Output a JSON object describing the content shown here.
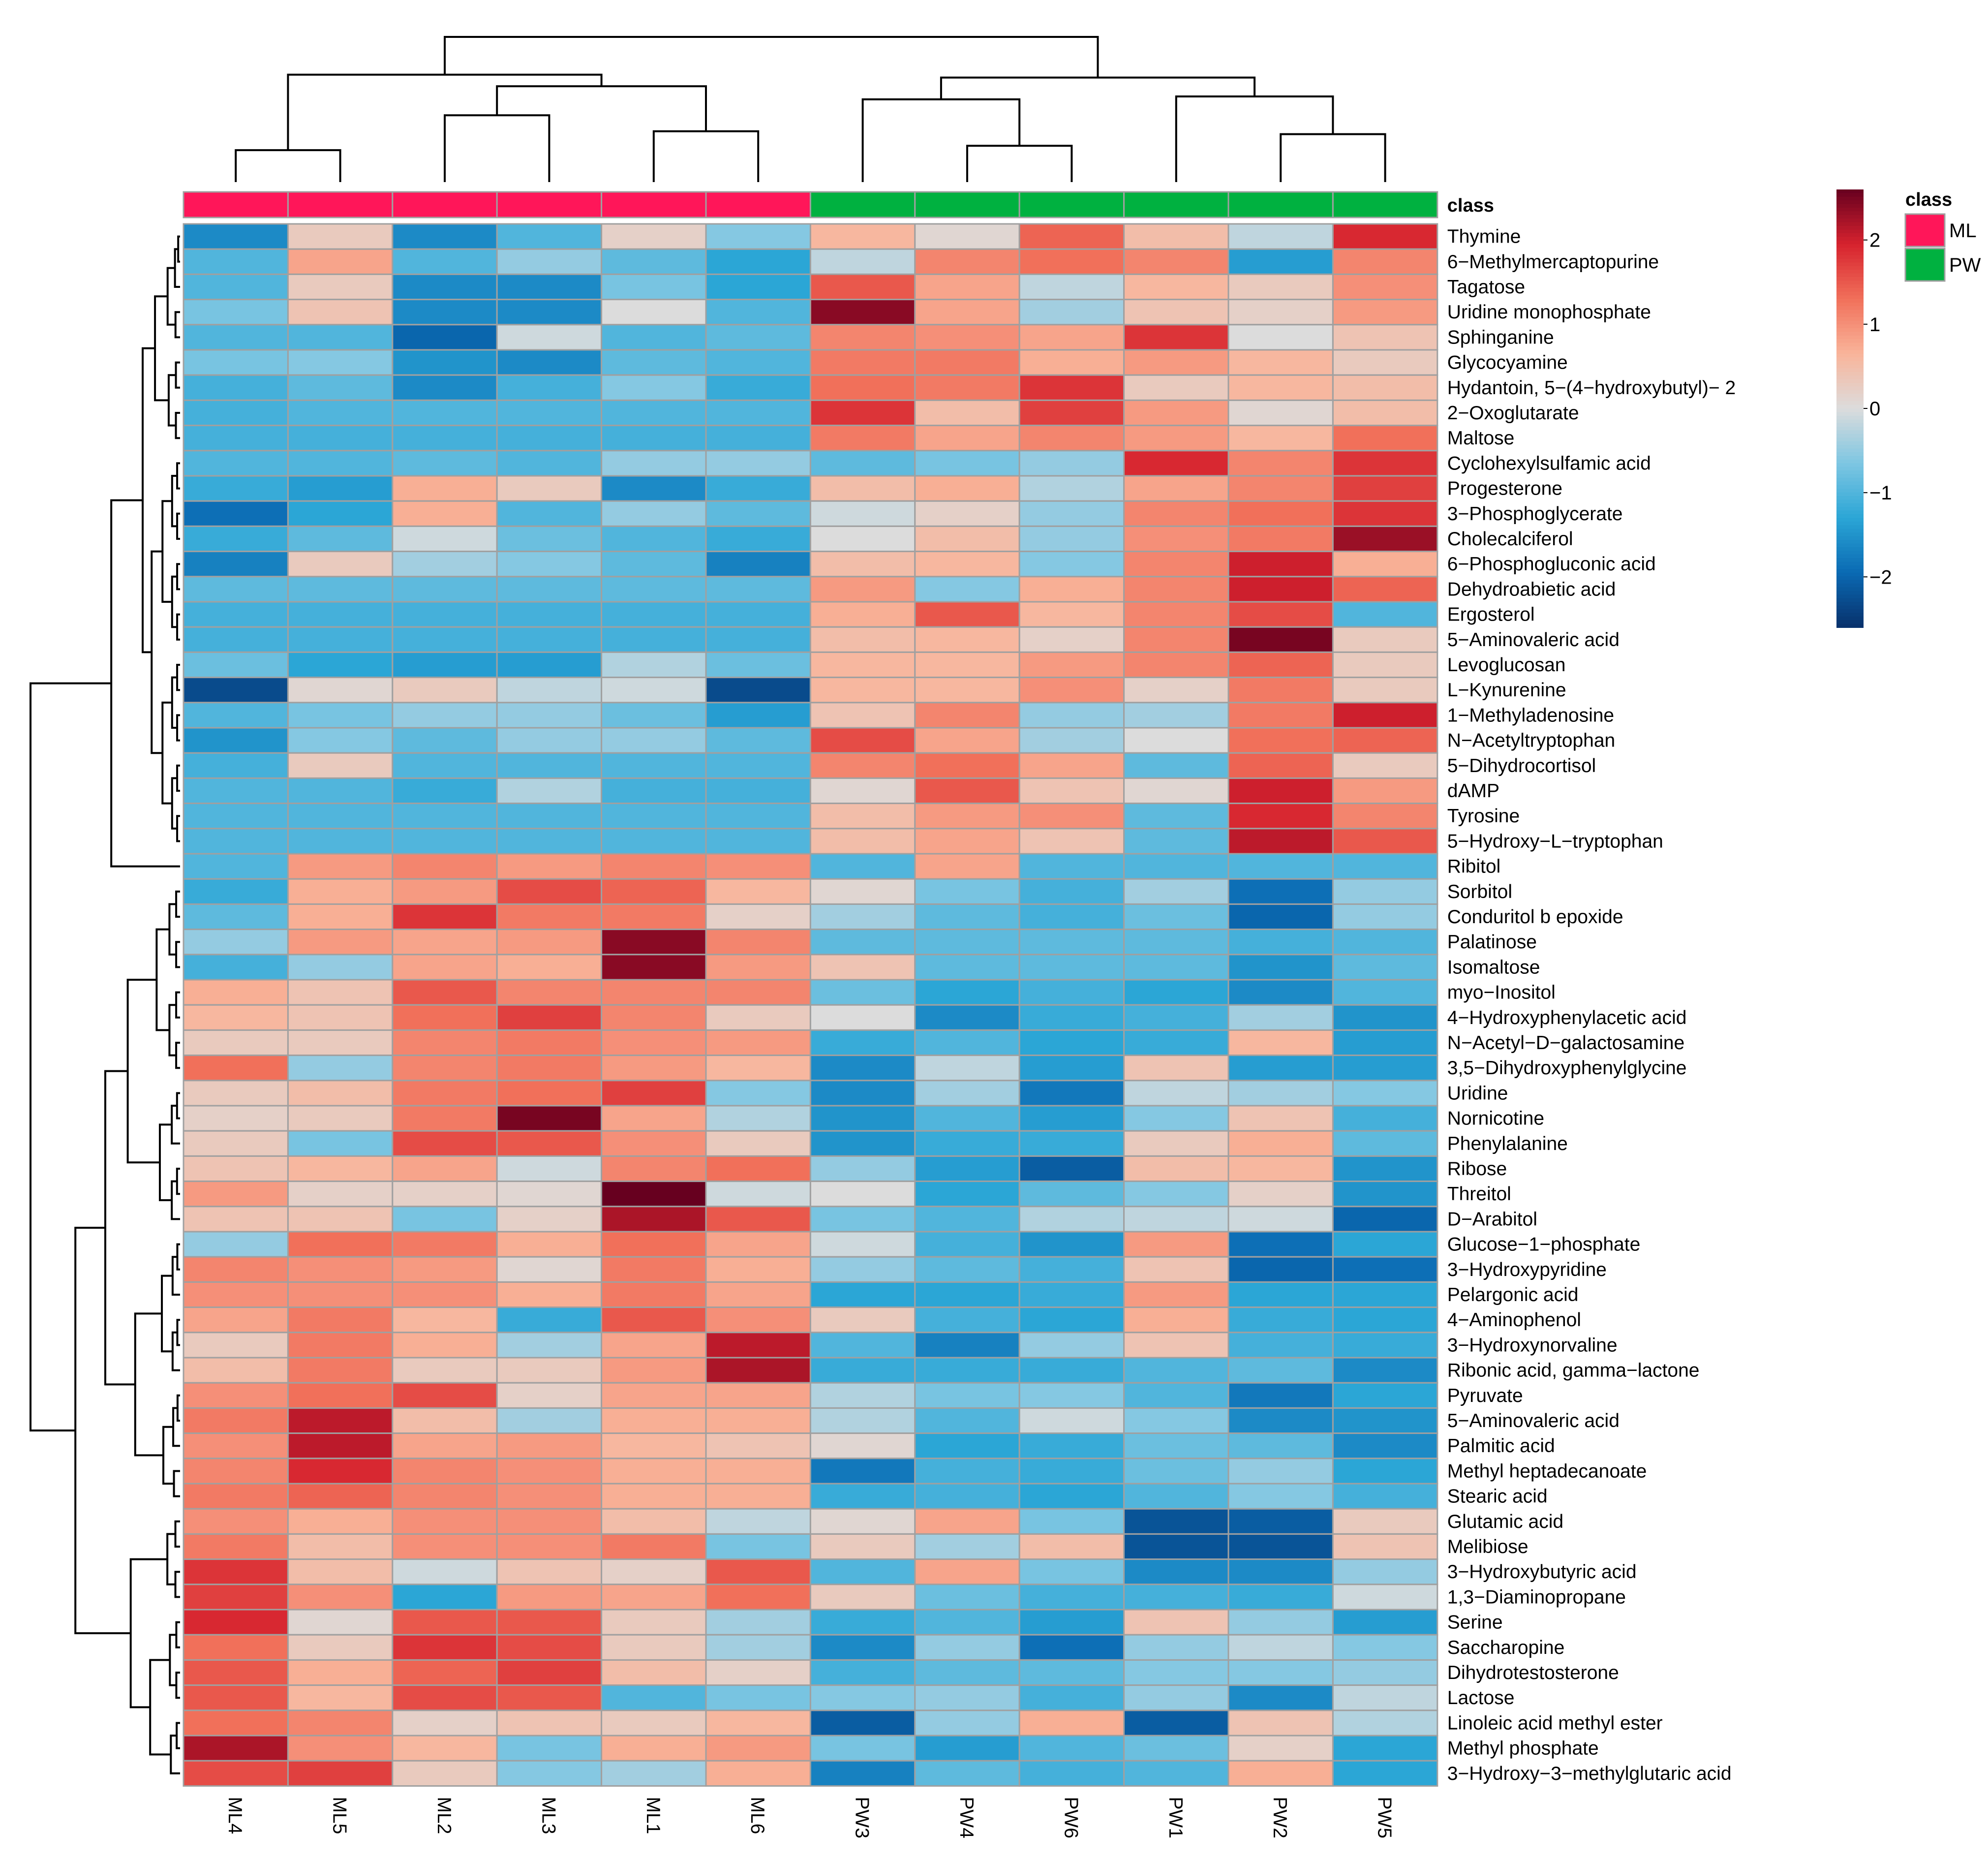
{
  "chart_data": {
    "type": "heatmap",
    "columns": [
      "ML4",
      "ML5",
      "ML2",
      "ML3",
      "ML1",
      "ML6",
      "PW3",
      "PW4",
      "PW6",
      "PW1",
      "PW2",
      "PW5"
    ],
    "column_class": [
      "ML",
      "ML",
      "ML",
      "ML",
      "ML",
      "ML",
      "PW",
      "PW",
      "PW",
      "PW",
      "PW",
      "PW"
    ],
    "class_label": "class",
    "legend_title": "class",
    "classes": [
      {
        "name": "ML",
        "color": "#ff1659"
      },
      {
        "name": "PW",
        "color": "#00b140"
      }
    ],
    "color_scale": {
      "min": -2.6,
      "max": 2.6,
      "ticks": [
        2,
        1,
        0,
        -1,
        -2
      ],
      "tick_labels": [
        "2",
        "1",
        "0",
        "−1",
        "−2"
      ],
      "colors": [
        "#08306b",
        "#0a6ab3",
        "#2ba6d6",
        "#7ec6e2",
        "#dcdcdc",
        "#f9b49a",
        "#f1705a",
        "#d6222e",
        "#67001f"
      ]
    },
    "rows": [
      "Thymine",
      "6−Methylmercaptopurine",
      "Tagatose",
      "Uridine monophosphate",
      "Sphinganine",
      "Glycocyamine",
      "Hydantoin, 5−(4−hydroxybutyl)− 2",
      "2−Oxoglutarate",
      "Maltose",
      "Cyclohexylsulfamic acid",
      "Progesterone",
      "3−Phosphoglycerate",
      "Cholecalciferol",
      "6−Phosphogluconic acid",
      "Dehydroabietic acid",
      "Ergosterol",
      "5−Aminovaleric acid",
      "Levoglucosan",
      "L−Kynurenine",
      "1−Methyladenosine",
      "N−Acetyltryptophan",
      "5−Dihydrocortisol",
      "dAMP",
      "Tyrosine",
      "5−Hydroxy−L−tryptophan",
      "Ribitol",
      "Sorbitol",
      "Conduritol b epoxide",
      "Palatinose",
      "Isomaltose",
      "myo−Inositol",
      "4−Hydroxyphenylacetic acid",
      "N−Acetyl−D−galactosamine",
      "3,5−Dihydroxyphenylglycine",
      "Uridine",
      "Nornicotine",
      "Phenylalanine",
      "Ribose",
      "Threitol",
      "D−Arabitol",
      "Glucose−1−phosphate",
      "3−Hydroxypyridine",
      "Pelargonic acid",
      "4−Aminophenol",
      "3−Hydroxynorvaline",
      "Ribonic acid, gamma−lactone",
      "Pyruvate",
      "5−Aminovaleric acid",
      "Palmitic acid",
      "Methyl heptadecanoate",
      "Stearic acid",
      "Glutamic acid",
      "Melibiose",
      "3−Hydroxybutyric acid",
      "1,3−Diaminopropane",
      "Serine",
      "Saccharopine",
      "Dihydrotestosterone",
      "Lactose",
      "Linoleic acid methyl ester",
      "Methyl phosphate",
      "3−Hydroxy−3−methylglutaric acid"
    ],
    "values": [
      [
        -1.6,
        0.3,
        -1.6,
        -1.0,
        0.2,
        -0.6,
        0.6,
        0.1,
        1.4,
        0.5,
        -0.2,
        1.9
      ],
      [
        -1.0,
        0.8,
        -1.0,
        -0.5,
        -0.9,
        -1.3,
        -0.2,
        1.1,
        1.3,
        1.1,
        -1.4,
        1.1
      ],
      [
        -1.0,
        0.3,
        -1.6,
        -1.6,
        -0.7,
        -1.3,
        1.5,
        0.8,
        -0.2,
        0.6,
        0.3,
        1.0
      ],
      [
        -0.7,
        0.4,
        -1.6,
        -1.6,
        0.0,
        -1.0,
        2.4,
        0.8,
        -0.4,
        0.4,
        0.2,
        0.9
      ],
      [
        -1.0,
        -1.0,
        -2.0,
        -0.1,
        -1.0,
        -0.9,
        1.1,
        1.0,
        0.8,
        1.8,
        0.0,
        0.4
      ],
      [
        -0.7,
        -0.6,
        -1.5,
        -1.6,
        -0.9,
        -1.0,
        1.2,
        1.2,
        0.7,
        0.9,
        0.6,
        0.3
      ],
      [
        -1.1,
        -0.9,
        -1.6,
        -1.1,
        -0.6,
        -1.2,
        1.3,
        1.2,
        1.8,
        0.3,
        0.6,
        0.5
      ],
      [
        -1.1,
        -1.0,
        -1.0,
        -1.0,
        -1.0,
        -1.0,
        1.8,
        0.5,
        1.7,
        0.9,
        0.1,
        0.5
      ],
      [
        -1.1,
        -1.1,
        -1.1,
        -1.1,
        -1.1,
        -1.1,
        1.2,
        0.8,
        1.1,
        0.9,
        0.6,
        1.3
      ],
      [
        -1.0,
        -1.0,
        -0.9,
        -1.0,
        -0.5,
        -0.5,
        -0.9,
        -0.7,
        -0.5,
        1.9,
        1.1,
        1.8
      ],
      [
        -1.2,
        -1.4,
        0.7,
        0.3,
        -1.6,
        -1.2,
        0.5,
        0.7,
        -0.3,
        0.8,
        1.1,
        1.7
      ],
      [
        -1.9,
        -1.3,
        0.7,
        -1.0,
        -0.5,
        -0.9,
        -0.1,
        0.2,
        -0.5,
        1.1,
        1.3,
        1.8
      ],
      [
        -1.2,
        -0.9,
        -0.1,
        -0.8,
        -1.0,
        -1.2,
        0.0,
        0.5,
        -0.5,
        1.0,
        1.2,
        2.3
      ],
      [
        -1.7,
        0.3,
        -0.4,
        -0.6,
        -0.9,
        -1.7,
        0.5,
        0.6,
        -0.6,
        1.1,
        2.0,
        0.7
      ],
      [
        -0.9,
        -0.9,
        -0.9,
        -0.9,
        -0.9,
        -0.9,
        0.9,
        -0.6,
        0.7,
        1.1,
        2.0,
        1.4
      ],
      [
        -1.1,
        -1.1,
        -1.1,
        -1.1,
        -1.1,
        -1.1,
        0.7,
        1.5,
        0.6,
        1.1,
        1.6,
        -1.0
      ],
      [
        -1.1,
        -1.1,
        -1.1,
        -1.1,
        -1.1,
        -1.1,
        0.5,
        0.6,
        0.2,
        1.1,
        2.5,
        0.3
      ],
      [
        -0.8,
        -1.3,
        -1.4,
        -1.4,
        -0.3,
        -0.8,
        0.6,
        0.6,
        0.9,
        1.1,
        1.4,
        0.3
      ],
      [
        -2.3,
        0.1,
        0.3,
        -0.2,
        -0.1,
        -2.3,
        0.6,
        0.6,
        1.0,
        0.2,
        1.2,
        0.3
      ],
      [
        -1.0,
        -0.7,
        -0.5,
        -0.5,
        -0.8,
        -1.4,
        0.4,
        1.1,
        -0.5,
        -0.4,
        1.2,
        2.0
      ],
      [
        -1.5,
        -0.6,
        -0.9,
        -0.5,
        -0.5,
        -0.9,
        1.6,
        0.8,
        -0.4,
        0.0,
        1.3,
        1.4
      ],
      [
        -1.1,
        0.3,
        -1.0,
        -1.0,
        -1.0,
        -1.0,
        1.1,
        1.3,
        0.8,
        -0.9,
        1.4,
        0.3
      ],
      [
        -1.0,
        -1.0,
        -1.2,
        -0.3,
        -1.1,
        -1.1,
        0.1,
        1.5,
        0.4,
        0.1,
        2.0,
        0.9
      ],
      [
        -1.0,
        -1.0,
        -1.0,
        -1.0,
        -1.0,
        -1.0,
        0.5,
        0.9,
        1.0,
        -0.9,
        1.9,
        1.1
      ],
      [
        -1.0,
        -1.0,
        -1.0,
        -1.0,
        -1.0,
        -1.0,
        0.5,
        0.8,
        0.4,
        -0.9,
        2.1,
        1.5
      ],
      [
        -1.0,
        0.9,
        1.1,
        0.9,
        1.1,
        1.0,
        -1.0,
        0.8,
        -1.0,
        -1.0,
        -1.0,
        -1.0
      ],
      [
        -1.2,
        0.7,
        0.9,
        1.6,
        1.4,
        0.6,
        0.1,
        -0.7,
        -1.1,
        -0.4,
        -1.9,
        -0.5
      ],
      [
        -0.9,
        0.7,
        1.8,
        1.2,
        1.2,
        0.2,
        -0.4,
        -0.9,
        -1.1,
        -0.8,
        -2.0,
        -0.5
      ],
      [
        -0.5,
        0.9,
        0.8,
        0.9,
        2.4,
        1.1,
        -0.9,
        -0.9,
        -0.9,
        -0.9,
        -1.1,
        -1.0
      ],
      [
        -1.1,
        -0.5,
        0.8,
        0.7,
        2.4,
        0.9,
        0.4,
        -0.9,
        -0.9,
        -0.9,
        -1.5,
        -0.9
      ],
      [
        0.7,
        0.4,
        1.5,
        1.1,
        1.1,
        1.1,
        -0.8,
        -1.3,
        -1.1,
        -1.3,
        -1.6,
        -1.0
      ],
      [
        0.6,
        0.4,
        1.3,
        1.7,
        1.1,
        0.3,
        0.0,
        -1.6,
        -1.2,
        -1.1,
        -0.4,
        -1.5
      ],
      [
        0.3,
        0.3,
        1.1,
        1.2,
        1.0,
        0.9,
        -1.2,
        -1.0,
        -1.3,
        -1.2,
        0.6,
        -1.4
      ],
      [
        1.3,
        -0.5,
        1.1,
        1.2,
        0.9,
        0.6,
        -1.6,
        -0.2,
        -1.4,
        0.4,
        -1.4,
        -1.4
      ],
      [
        0.3,
        0.5,
        1.2,
        1.3,
        1.7,
        -0.6,
        -1.6,
        -0.4,
        -1.8,
        -0.2,
        -0.4,
        -0.6
      ],
      [
        0.2,
        0.3,
        1.2,
        2.5,
        0.8,
        -0.3,
        -1.5,
        -1.0,
        -1.4,
        -0.6,
        0.4,
        -1.1
      ],
      [
        0.3,
        -0.7,
        1.6,
        1.5,
        1.0,
        0.3,
        -1.5,
        -1.2,
        -1.2,
        0.3,
        0.7,
        -0.9
      ],
      [
        0.4,
        0.6,
        0.8,
        -0.1,
        1.1,
        1.3,
        -0.5,
        -1.4,
        -2.1,
        0.5,
        0.6,
        -1.5
      ],
      [
        0.9,
        0.2,
        0.2,
        0.1,
        2.9,
        -0.1,
        0.0,
        -1.3,
        -0.9,
        -0.6,
        0.2,
        -1.5
      ],
      [
        0.4,
        0.4,
        -0.7,
        0.2,
        2.2,
        1.5,
        -0.7,
        -1.0,
        -0.3,
        -0.2,
        -0.1,
        -2.0
      ],
      [
        -0.5,
        1.3,
        1.2,
        0.7,
        1.3,
        0.8,
        -0.1,
        -1.1,
        -1.5,
        0.9,
        -1.9,
        -1.3
      ],
      [
        1.1,
        1.0,
        0.9,
        0.1,
        1.2,
        0.7,
        -0.5,
        -0.9,
        -1.1,
        0.4,
        -2.0,
        -1.9
      ],
      [
        1.0,
        1.0,
        1.0,
        0.7,
        1.2,
        0.8,
        -1.3,
        -1.3,
        -1.2,
        0.9,
        -1.3,
        -1.3
      ],
      [
        0.8,
        1.2,
        0.6,
        -1.2,
        1.5,
        1.0,
        0.3,
        -1.1,
        -1.3,
        0.7,
        -1.2,
        -1.3
      ],
      [
        0.3,
        1.2,
        0.7,
        -0.4,
        0.8,
        2.1,
        -1.0,
        -1.7,
        -0.5,
        0.4,
        -1.1,
        -1.2
      ],
      [
        0.5,
        1.2,
        0.3,
        0.3,
        0.9,
        2.2,
        -1.2,
        -1.2,
        -1.2,
        -1.0,
        -0.9,
        -1.6
      ],
      [
        1.0,
        1.3,
        1.6,
        0.2,
        0.8,
        0.8,
        -0.3,
        -0.7,
        -0.6,
        -1.0,
        -1.8,
        -1.3
      ],
      [
        1.2,
        2.1,
        0.5,
        -0.4,
        0.7,
        0.7,
        -0.3,
        -1.0,
        -0.1,
        -0.6,
        -1.6,
        -1.5
      ],
      [
        1.0,
        2.1,
        0.8,
        0.9,
        0.6,
        0.4,
        0.1,
        -1.3,
        -1.2,
        -0.8,
        -0.9,
        -1.6
      ],
      [
        1.1,
        1.9,
        1.1,
        1.0,
        0.7,
        0.7,
        -1.8,
        -1.1,
        -1.2,
        -0.8,
        -0.5,
        -1.3
      ],
      [
        1.2,
        1.4,
        1.1,
        1.0,
        0.7,
        0.7,
        -1.2,
        -1.1,
        -1.3,
        -1.0,
        -0.6,
        -1.1
      ],
      [
        1.0,
        0.7,
        1.0,
        1.0,
        0.5,
        -0.2,
        0.1,
        0.8,
        -0.7,
        -2.2,
        -2.1,
        0.3
      ],
      [
        1.2,
        0.5,
        1.0,
        1.0,
        1.2,
        -0.7,
        0.3,
        -0.4,
        0.5,
        -2.2,
        -2.2,
        0.4
      ],
      [
        1.8,
        0.5,
        -0.1,
        0.4,
        0.2,
        1.5,
        -1.0,
        0.8,
        -0.7,
        -1.6,
        -1.6,
        -0.5
      ],
      [
        1.7,
        1.0,
        -1.3,
        0.9,
        0.8,
        1.3,
        0.3,
        -0.8,
        -1.1,
        -1.1,
        -1.2,
        -0.1
      ],
      [
        1.9,
        0.1,
        1.5,
        1.5,
        0.3,
        -0.4,
        -1.2,
        -1.0,
        -1.4,
        0.4,
        -0.5,
        -1.4
      ],
      [
        1.3,
        0.3,
        1.8,
        1.6,
        0.3,
        -0.4,
        -1.6,
        -0.5,
        -1.9,
        -0.5,
        -0.2,
        -0.6
      ],
      [
        1.5,
        0.7,
        1.4,
        1.7,
        0.5,
        0.2,
        -1.1,
        -0.9,
        -0.9,
        -0.6,
        -0.6,
        -0.5
      ],
      [
        1.5,
        0.6,
        1.6,
        1.5,
        -1.0,
        -0.7,
        -0.6,
        -0.5,
        -1.1,
        -0.5,
        -1.6,
        -0.2
      ],
      [
        1.3,
        1.1,
        0.2,
        0.4,
        0.3,
        0.6,
        -2.1,
        -0.5,
        0.7,
        -2.1,
        0.4,
        -0.3
      ],
      [
        2.2,
        1.0,
        0.6,
        -0.7,
        0.7,
        0.9,
        -0.7,
        -1.4,
        -1.0,
        -0.8,
        0.2,
        -1.3
      ],
      [
        1.6,
        1.7,
        0.3,
        -0.6,
        -0.4,
        0.7,
        -1.7,
        -0.9,
        -1.1,
        -1.0,
        0.7,
        -1.3
      ]
    ]
  }
}
